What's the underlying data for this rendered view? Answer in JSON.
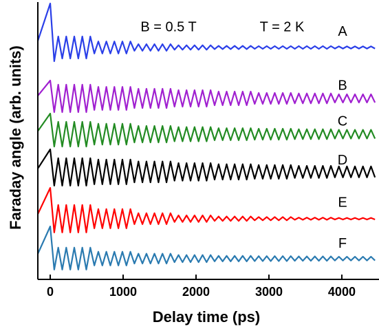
{
  "chart_data": {
    "type": "line",
    "xlabel": "Delay time (ps)",
    "ylabel": "Faraday angle (arb. units)",
    "annotations": [
      "B = 0.5 T",
      "T = 2 K"
    ],
    "xlim": [
      -170,
      4510
    ],
    "xticks": [
      0,
      1000,
      2000,
      3000,
      4000
    ],
    "ylim": [
      0,
      100
    ],
    "x": [
      -200,
      0,
      55,
      110,
      165,
      220,
      275,
      330,
      385,
      440,
      495,
      550,
      605,
      660,
      715,
      770,
      825,
      880,
      935,
      990,
      1045,
      1100,
      1155,
      1210,
      1265,
      1320,
      1375,
      1430,
      1485,
      1540,
      1595,
      1650,
      1705,
      1760,
      1815,
      1870,
      1925,
      1980,
      2035,
      2090,
      2145,
      2200,
      2255,
      2310,
      2365,
      2420,
      2475,
      2530,
      2585,
      2640,
      2695,
      2750,
      2805,
      2860,
      2915,
      2970,
      3025,
      3080,
      3135,
      3190,
      3245,
      3300,
      3355,
      3410,
      3465,
      3520,
      3575,
      3630,
      3685,
      3740,
      3795,
      3850,
      3905,
      3960,
      4015,
      4070,
      4125,
      4180,
      4235,
      4290,
      4345,
      4400,
      4455
    ],
    "series": [
      {
        "name": "A",
        "color": "#2a3fe8",
        "values": [
          84,
          100,
          79,
          88,
          80,
          88,
          80,
          88,
          80,
          88,
          80,
          88,
          81.8,
          86.2,
          81.8,
          86.2,
          81.8,
          86.2,
          81.8,
          86.2,
          81.8,
          86.2,
          82.8,
          85.2,
          82.8,
          85.2,
          82.8,
          85.2,
          82.8,
          85.2,
          82.8,
          85.2,
          83.2,
          84.8,
          83.2,
          84.8,
          83.2,
          84.8,
          83.2,
          84.8,
          83.2,
          84.8,
          83.4,
          84.6,
          83.4,
          84.6,
          83.4,
          84.6,
          83.4,
          84.6,
          83.4,
          84.6,
          83.5,
          84.5,
          83.5,
          84.5,
          83.5,
          84.5,
          83.5,
          84.5,
          83.5,
          84.5,
          83.5,
          84.5,
          83.5,
          84.5,
          83.5,
          84.5,
          83.5,
          84.5,
          83.5,
          84.5,
          83.6,
          84.4,
          83.6,
          84.4,
          83.6,
          84.4,
          83.6,
          84.4,
          83.6,
          84.4,
          83.6
        ]
      },
      {
        "name": "B",
        "color": "#a020d0",
        "values": [
          65.5,
          72,
          60.5,
          70.5,
          60.5,
          70.5,
          60.5,
          70.5,
          60.5,
          70.5,
          60.5,
          70.5,
          61.3,
          69.7,
          61.3,
          69.7,
          61.3,
          69.7,
          61.3,
          69.7,
          61.3,
          69.7,
          62,
          69,
          62,
          69,
          62,
          69,
          62,
          69,
          62,
          69,
          62.5,
          68.5,
          62.5,
          68.5,
          62.5,
          68.5,
          62.5,
          68.5,
          62.5,
          68.5,
          63,
          68,
          63,
          68,
          63,
          68,
          63,
          68,
          63,
          68,
          63.5,
          67.5,
          63.5,
          67.5,
          63.5,
          67.5,
          63.5,
          67.5,
          63.5,
          67.5,
          63.7,
          67.3,
          63.7,
          67.3,
          63.7,
          67.3,
          63.7,
          67.3,
          63.7,
          67.3,
          64,
          67,
          64,
          67,
          64,
          67,
          64,
          67,
          64,
          67,
          64
        ]
      },
      {
        "name": "C",
        "color": "#228b22",
        "values": [
          52.5,
          60,
          48,
          57,
          48,
          57,
          48,
          57,
          48,
          57,
          48,
          57,
          48.7,
          56.3,
          48.7,
          56.3,
          48.7,
          56.3,
          48.7,
          56.3,
          48.7,
          56.3,
          49.5,
          55.5,
          49.5,
          55.5,
          49.5,
          55.5,
          49.5,
          55.5,
          49.5,
          55.5,
          49.9,
          55.1,
          49.9,
          55.1,
          49.9,
          55.1,
          49.9,
          55.1,
          49.9,
          55.1,
          50.3,
          54.7,
          50.3,
          54.7,
          50.3,
          54.7,
          50.3,
          54.7,
          50.3,
          54.7,
          50.5,
          54.5,
          50.5,
          54.5,
          50.5,
          54.5,
          50.5,
          54.5,
          50.5,
          54.5,
          50.7,
          54.3,
          50.7,
          54.3,
          50.7,
          54.3,
          50.7,
          54.3,
          50.7,
          54.3,
          50.9,
          54.1,
          50.9,
          54.1,
          50.9,
          54.1,
          50.9,
          54.1,
          50.9,
          54.1,
          50.9
        ]
      },
      {
        "name": "D",
        "color": "#000000",
        "values": [
          38.8,
          47,
          33.8,
          43.8,
          33.8,
          43.8,
          33.8,
          43.8,
          33.8,
          43.8,
          33.8,
          43.8,
          34.3,
          43.3,
          34.3,
          43.3,
          34.3,
          43.3,
          34.3,
          43.3,
          34.3,
          43.3,
          35,
          42.6,
          35,
          42.6,
          35,
          42.6,
          35,
          42.6,
          35,
          42.6,
          35.6,
          42,
          35.6,
          42,
          35.6,
          42,
          35.6,
          42,
          35.6,
          42,
          36,
          41.6,
          36,
          41.6,
          36,
          41.6,
          36,
          41.6,
          36,
          41.6,
          36.3,
          41.3,
          36.3,
          41.3,
          36.3,
          41.3,
          36.3,
          41.3,
          36.3,
          41.3,
          36.6,
          41,
          36.6,
          41,
          36.6,
          41,
          36.6,
          41,
          36.6,
          41,
          36.8,
          40.8,
          36.8,
          40.8,
          36.8,
          40.8,
          36.8,
          40.8,
          36.8,
          40.8,
          36.8
        ]
      },
      {
        "name": "E",
        "color": "#ff0000",
        "values": [
          21.8,
          33,
          16.8,
          26.8,
          16.8,
          26.8,
          16.8,
          26.8,
          16.8,
          26.8,
          16.8,
          26.8,
          18.3,
          25.3,
          18.3,
          25.3,
          18.3,
          25.3,
          18.3,
          25.3,
          18.3,
          25.3,
          19.8,
          23.8,
          19.8,
          23.8,
          19.8,
          23.8,
          19.8,
          23.8,
          19.8,
          23.8,
          20.6,
          23,
          20.6,
          23,
          20.6,
          23,
          20.6,
          23,
          20.6,
          23,
          21,
          22.6,
          21,
          22.6,
          21,
          22.6,
          21,
          22.6,
          21,
          22.6,
          21.2,
          22.4,
          21.2,
          22.4,
          21.2,
          22.4,
          21.2,
          22.4,
          21.2,
          22.4,
          21.4,
          22.2,
          21.4,
          22.2,
          21.4,
          22.2,
          21.4,
          22.2,
          21.4,
          22.2,
          21.5,
          22.1,
          21.5,
          22.1,
          21.5,
          22.1,
          21.5,
          22.1,
          21.5,
          22.1,
          21.5
        ]
      },
      {
        "name": "F",
        "color": "#2a7ab0",
        "values": [
          7.3,
          19,
          3.3,
          11.3,
          3.3,
          11.3,
          3.3,
          11.3,
          3.3,
          11.3,
          3.3,
          11.3,
          4.8,
          9.8,
          4.8,
          9.8,
          4.8,
          9.8,
          4.8,
          9.8,
          4.8,
          9.8,
          5.5,
          9.1,
          5.5,
          9.1,
          5.5,
          9.1,
          5.5,
          9.1,
          5.5,
          9.1,
          6,
          8.6,
          6,
          8.6,
          6,
          8.6,
          6,
          8.6,
          6,
          8.6,
          6.3,
          8.3,
          6.3,
          8.3,
          6.3,
          8.3,
          6.3,
          8.3,
          6.3,
          8.3,
          6.4,
          8.2,
          6.4,
          8.2,
          6.4,
          8.2,
          6.4,
          8.2,
          6.4,
          8.2,
          6.5,
          8.1,
          6.5,
          8.1,
          6.5,
          8.1,
          6.5,
          8.1,
          6.5,
          8.1,
          6.6,
          8,
          6.6,
          8,
          6.6,
          8,
          6.6,
          8,
          6.6,
          8,
          6.6
        ]
      }
    ]
  }
}
